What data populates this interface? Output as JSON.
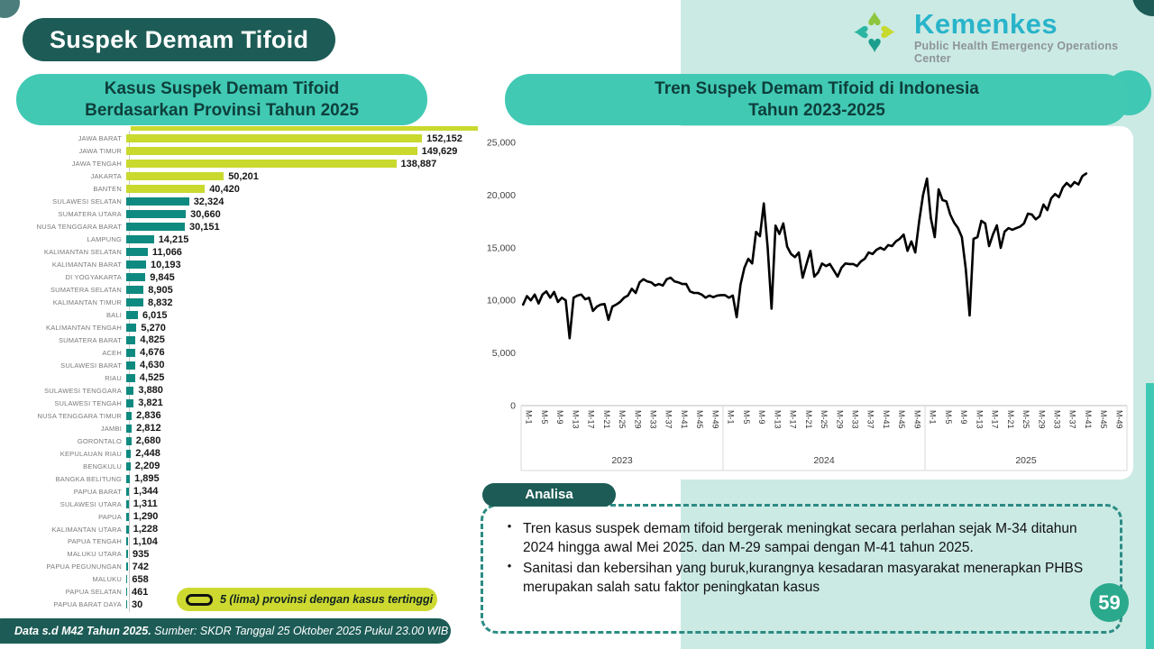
{
  "page": {
    "number": "59"
  },
  "header": {
    "title": "Suspek Demam Tifoid"
  },
  "logo": {
    "brand": "Kemenkes",
    "subtitle": "Public Health Emergency Operations Center"
  },
  "left_chart": {
    "title_line1": "Kasus Suspek Demam Tifoid",
    "title_line2": "Berdasarkan Provinsi Tahun 2025",
    "legend": "5 (lima) provinsi dengan kasus tertinggi"
  },
  "right_chart": {
    "title_line1": "Tren Suspek Demam Tifoid di Indonesia",
    "title_line2": "Tahun 2023-2025"
  },
  "analysis": {
    "label": "Analisa",
    "bullets": [
      "Tren kasus suspek demam tifoid  bergerak meningkat secara perlahan sejak M-34 ditahun 2024 hingga awal Mei 2025. dan M-29 sampai dengan M-41 tahun 2025.",
      "Sanitasi dan kebersihan yang buruk,kurangnya kesadaran masyarakat menerapkan PHBS merupakan salah satu faktor peningkatan kasus"
    ]
  },
  "footer": {
    "bold": "Data s.d M42 Tahun 2025.",
    "source": " Sumber: SKDR Tanggal 25 Oktober 2025 Pukul 23.00 WIB"
  },
  "colors": {
    "dark_teal": "#1d5c56",
    "teal": "#41c9b4",
    "mint": "#cbeae4",
    "lime": "#c9d92e",
    "teal_bar": "#0f8a80",
    "page_circle": "#2ba98c",
    "brand_cyan": "#28b4ca"
  },
  "chart_data": [
    {
      "type": "bar",
      "orientation": "horizontal",
      "title": "Kasus Suspek Demam Tifoid Berdasarkan Provinsi Tahun 2025",
      "categories": [
        "JAWA BARAT",
        "JAWA TIMUR",
        "JAWA TENGAH",
        "JAKARTA",
        "BANTEN",
        "SULAWESI SELATAN",
        "SUMATERA UTARA",
        "NUSA TENGGARA BARAT",
        "LAMPUNG",
        "KALIMANTAN SELATAN",
        "KALIMANTAN BARAT",
        "DI YOGYAKARTA",
        "SUMATERA SELATAN",
        "KALIMANTAN TIMUR",
        "BALI",
        "KALIMANTAN TENGAH",
        "SUMATERA BARAT",
        "ACEH",
        "SULAWESI BARAT",
        "RIAU",
        "SULAWESI TENGGARA",
        "SULAWESI TENGAH",
        "NUSA TENGGARA TIMUR",
        "JAMBI",
        "GORONTALO",
        "KEPULAUAN RIAU",
        "BENGKULU",
        "BANGKA BELITUNG",
        "PAPUA BARAT",
        "SULAWESI UTARA",
        "PAPUA",
        "KALIMANTAN UTARA",
        "PAPUA TENGAH",
        "MALUKU UTARA",
        "PAPUA PEGUNUNGAN",
        "MALUKU",
        "PAPUA SELATAN",
        "PAPUA BARAT DAYA"
      ],
      "values": [
        152152,
        149629,
        138887,
        50201,
        40420,
        32324,
        30660,
        30151,
        14215,
        11066,
        10193,
        9845,
        8905,
        8832,
        6015,
        5270,
        4825,
        4676,
        4630,
        4525,
        3880,
        3821,
        2836,
        2812,
        2680,
        2448,
        2209,
        1895,
        1344,
        1311,
        1290,
        1228,
        1104,
        935,
        742,
        658,
        461,
        30
      ],
      "labels": [
        "152,152",
        "149,629",
        "138,887",
        "50,201",
        "40,420",
        "32,324",
        "30,660",
        "30,151",
        "14,215",
        "11,066",
        "10,193",
        "9,845",
        "8,905",
        "8,832",
        "6,015",
        "5,270",
        "4,825",
        "4,676",
        "4,630",
        "4,525",
        "3,880",
        "3,821",
        "2,836",
        "2,812",
        "2,680",
        "2,448",
        "2,209",
        "1,895",
        "1,344",
        "1,311",
        "1,290",
        "1,228",
        "1,104",
        "935",
        "742",
        "658",
        "461",
        "30"
      ],
      "highlight_top": 5,
      "bar_color_top5": "#c9d92e",
      "bar_color": "#0f8a80",
      "xlim": [
        0,
        160000
      ]
    },
    {
      "type": "line",
      "title": "Tren Suspek Demam Tifoid di Indonesia Tahun 2023-2025",
      "years": [
        "2023",
        "2024",
        "2025"
      ],
      "weeks_per_year": 52,
      "x_ticks": [
        1,
        5,
        9,
        13,
        17,
        21,
        25,
        29,
        33,
        37,
        41,
        45,
        49
      ],
      "x_tick_labels": [
        "M-1",
        "M-5",
        "M-9",
        "M-13",
        "M-17",
        "M-21",
        "M-25",
        "M-29",
        "M-33",
        "M-37",
        "M-41",
        "M-45",
        "M-49"
      ],
      "ylim": [
        0,
        25000
      ],
      "y_ticks": [
        0,
        5000,
        10000,
        15000,
        20000,
        25000
      ],
      "y_tick_labels": [
        "0",
        "5,000",
        "10,000",
        "15,000",
        "20,000",
        "25,000"
      ],
      "line_color": "#000000",
      "series": [
        {
          "name": "Suspek Demam Tifoid",
          "values": [
            [
              9600,
              10400,
              10000,
              10550,
              9700,
              10550,
              10850,
              10250,
              10800,
              9850,
              10250,
              10000,
              6400,
              10250,
              10450,
              10550,
              10100,
              10250,
              9000,
              9400,
              9600,
              9650,
              8150,
              9400,
              9600,
              9850,
              10250,
              10450,
              11100,
              10700,
              11700,
              12000,
              11800,
              11700,
              11400,
              11550,
              11400,
              12000,
              12150,
              11800,
              11700,
              11550,
              11550,
              10850,
              10700,
              10700,
              10550,
              10250,
              10450,
              10300,
              10450,
              10500
            ],
            [
              10500,
              10250,
              10450,
              8400,
              11500,
              13100,
              13950,
              13500,
              16500,
              16100,
              19200,
              15000,
              9200,
              17100,
              16300,
              17300,
              15100,
              14400,
              14100,
              14550,
              12150,
              13450,
              14700,
              12250,
              12650,
              13500,
              13250,
              13450,
              12850,
              12250,
              13100,
              13500,
              13450,
              13450,
              13250,
              13700,
              13950,
              14550,
              14400,
              14800,
              15000,
              14800,
              15250,
              15150,
              15600,
              15850,
              16250,
              14700,
              15600,
              14550,
              17500,
              20000
            ],
            [
              21570,
              17800,
              16000,
              20550,
              19520,
              19400,
              18150,
              17380,
              16870,
              16000,
              13000,
              8560,
              15840,
              16000,
              17550,
              17300,
              15150,
              16270,
              17120,
              14980,
              16520,
              16860,
              16700,
              16860,
              17000,
              17300,
              18240,
              18150,
              17700,
              17980,
              19100,
              18580,
              19690,
              20100,
              19800,
              20720,
              21150,
              20800,
              21230,
              21000,
              21800,
              22050
            ]
          ]
        }
      ]
    }
  ]
}
